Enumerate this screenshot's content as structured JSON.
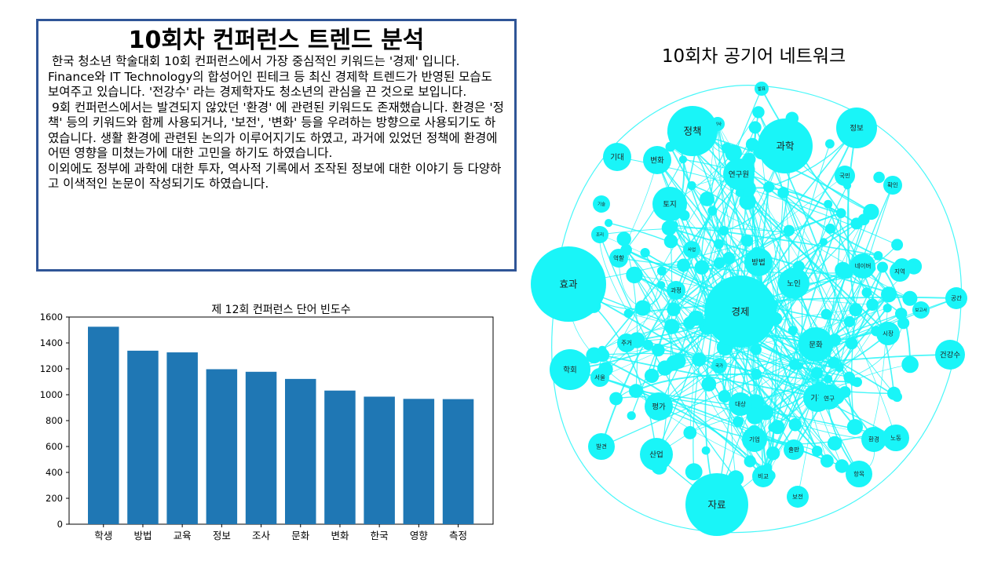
{
  "summary": {
    "heading": "10회차 컨퍼런스 트렌드 분석",
    "paragraphs": [
      " 한국 청소년 학술대회 10회 컨퍼런스에서 가장 중심적인 키워드는 '경제' 입니다. Finance와 IT Technology의 합성어인 핀테크 등 최신 경제학 트렌드가 반영된 모습도 보여주고 있습니다. '전강수' 라는 경제학자도 청소년의 관심을 끈 것으로 보입니다.",
      " 9회 컨퍼런스에서는 발견되지 않았던 '환경' 에 관련된 키워드도 존재했습니다. 환경은 '정책' 등의 키워드와 함께 사용되거나, '보전', '변화' 등을 우려하는 방향으로 사용되기도 하였습니다. 생활 환경에 관련된 논의가 이루어지기도 하였고, 과거에 있었던 정책에 환경에 어떤 영향을 미쳤는가에 대한 고민을 하기도 하였습니다.",
      "이외에도 정부에 과학에 대한 투자, 역사적 기록에서 조작된 정보에 대한 이야기 등 다양하고 이색적인 논문이 작성되기도 하였습니다."
    ]
  },
  "network": {
    "title": "10회차 공기어 네트워크",
    "node_color": "#19f5f8",
    "edge_color": "#19f5f8",
    "labeled_nodes": [
      "발표",
      "역사",
      "정책",
      "과학",
      "정보",
      "기대",
      "변화",
      "연구원",
      "국민",
      "확인",
      "토지",
      "기술",
      "조리",
      "역할",
      "효과",
      "방법",
      "노인",
      "과정",
      "네이버",
      "국가",
      "경제",
      "건강수",
      "학회",
      "서울",
      "문화",
      "시장",
      "주거",
      "환경",
      "평가",
      "기관",
      "대상",
      "산업",
      "기업",
      "노동",
      "항목",
      "발견",
      "자료",
      "비교",
      "보전",
      "지역",
      "출판",
      "공간",
      "보고서",
      "연구",
      "사업"
    ]
  },
  "chart_data": {
    "type": "bar",
    "title": "제 12회 컨퍼런스 단어 빈도수",
    "categories": [
      "학생",
      "방법",
      "교육",
      "정보",
      "조사",
      "문화",
      "변화",
      "한국",
      "영향",
      "측정"
    ],
    "values": [
      1525,
      1340,
      1327,
      1197,
      1177,
      1122,
      1032,
      985,
      968,
      966
    ],
    "ylim": [
      0,
      1600
    ],
    "yticks": [
      0,
      200,
      400,
      600,
      800,
      1000,
      1200,
      1400,
      1600
    ],
    "bar_color": "#1f77b4",
    "grid": false
  }
}
